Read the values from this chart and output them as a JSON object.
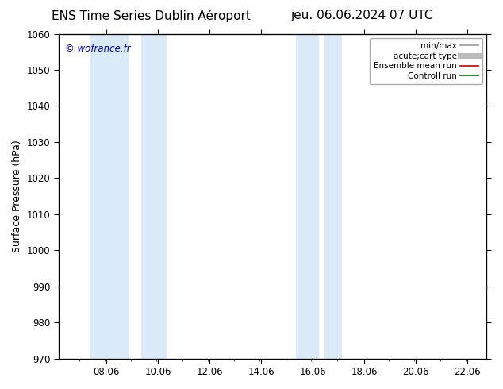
{
  "title_left": "ENS Time Series Dublin Aéroport",
  "title_right": "jeu. 06.06.2024 07 UTC",
  "ylabel": "Surface Pressure (hPa)",
  "ylim": [
    970,
    1060
  ],
  "yticks": [
    970,
    980,
    990,
    1000,
    1010,
    1020,
    1030,
    1040,
    1050,
    1060
  ],
  "xlim_start": 6.2,
  "xlim_end": 22.8,
  "xticks": [
    8.06,
    10.06,
    12.06,
    14.06,
    16.06,
    18.06,
    20.06,
    22.06
  ],
  "xticklabels": [
    "08.06",
    "10.06",
    "12.06",
    "14.06",
    "16.06",
    "18.06",
    "20.06",
    "22.06"
  ],
  "shaded_bands": [
    {
      "xmin": 7.4,
      "xmax": 8.9,
      "color": "#daeaf8"
    },
    {
      "xmin": 9.4,
      "xmax": 10.4,
      "color": "#daeaf8"
    },
    {
      "xmin": 15.4,
      "xmax": 16.3,
      "color": "#daeaf8"
    },
    {
      "xmin": 16.5,
      "xmax": 17.2,
      "color": "#daeaf8"
    }
  ],
  "watermark": "© wofrance.fr",
  "watermark_color": "#0000cc",
  "legend_entries": [
    {
      "label": "min/max",
      "color": "#999999",
      "lw": 1.2
    },
    {
      "label": "acute;cart type",
      "color": "#bbbbbb",
      "lw": 5.0
    },
    {
      "label": "Ensemble mean run",
      "color": "#cc0000",
      "lw": 1.2
    },
    {
      "label": "Controll run",
      "color": "#007700",
      "lw": 1.2
    }
  ],
  "bg_color": "#ffffff",
  "plot_bg_color": "#ffffff",
  "spine_color": "#000000",
  "tick_color": "#000000",
  "title_fontsize": 11,
  "axis_label_fontsize": 9,
  "tick_fontsize": 8.5,
  "watermark_fontsize": 8.5,
  "legend_fontsize": 7.5
}
